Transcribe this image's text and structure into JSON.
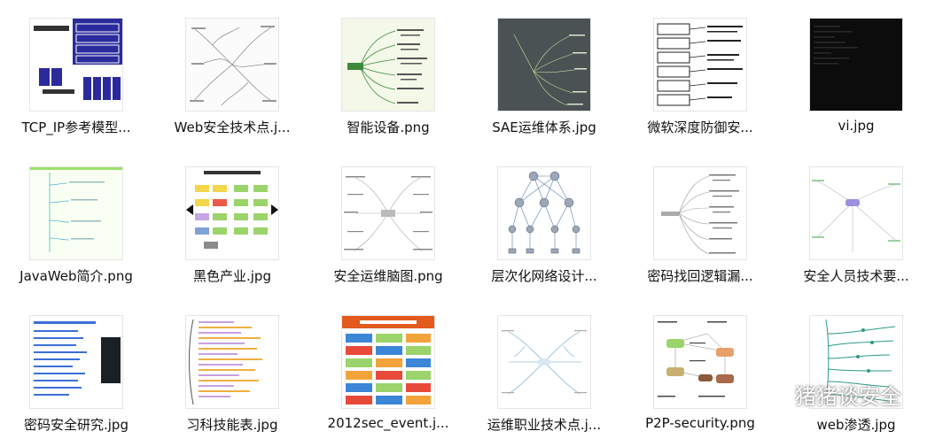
{
  "files": [
    {
      "label": "TCP_IP参考模型...",
      "thumb": "tcpip-model-icon"
    },
    {
      "label": "Web安全技术点.j...",
      "thumb": "web-security-mindmap-icon"
    },
    {
      "label": "智能设备.png",
      "thumb": "smart-device-mindmap-icon"
    },
    {
      "label": "SAE运维体系.jpg",
      "thumb": "sae-ops-mindmap-icon"
    },
    {
      "label": "微软深度防御安...",
      "thumb": "ms-defense-diagram-icon"
    },
    {
      "label": "vi.jpg",
      "thumb": "vi-dark-screen-icon"
    },
    {
      "label": "JavaWeb简介.png",
      "thumb": "javaweb-tree-icon"
    },
    {
      "label": "黑色产业.jpg",
      "thumb": "black-industry-diagram-icon"
    },
    {
      "label": "安全运维脑图.png",
      "thumb": "security-ops-mindmap-icon"
    },
    {
      "label": "层次化网络设计...",
      "thumb": "network-topology-icon"
    },
    {
      "label": "密码找回逻辑漏...",
      "thumb": "password-reset-mindmap-icon"
    },
    {
      "label": "安全人员技术要...",
      "thumb": "security-staff-mindmap-icon"
    },
    {
      "label": "密码安全研究.jpg",
      "thumb": "password-research-doc-icon"
    },
    {
      "label": "习科技能表.jpg",
      "thumb": "skills-table-icon"
    },
    {
      "label": "2012sec_event.j...",
      "thumb": "sec-event-timeline-icon"
    },
    {
      "label": "运维职业技术点.j...",
      "thumb": "ops-career-mindmap-icon"
    },
    {
      "label": "P2P-security.png",
      "thumb": "p2p-security-diagram-icon"
    },
    {
      "label": "web渗透.jpg",
      "thumb": "web-pentest-mindmap-icon"
    }
  ],
  "watermark": {
    "text": "猪猪谈安全",
    "icon": "wechat-icon"
  }
}
